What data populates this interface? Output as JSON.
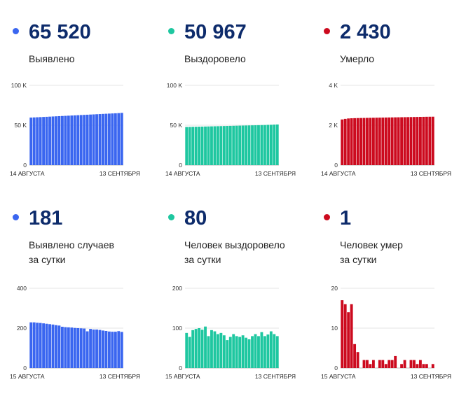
{
  "panels": [
    {
      "number": "65 520",
      "label_lines": [
        "Выявлено"
      ],
      "color": "#3a66f0",
      "chart_data": {
        "type": "bar",
        "ymax": 100000,
        "ticks": [
          {
            "v": 0,
            "t": "0"
          },
          {
            "v": 50000,
            "t": "50 K"
          },
          {
            "v": 100000,
            "t": "100 K"
          }
        ],
        "xlabels": [
          "14 АВГУСТА",
          "13 СЕНТЯБРЯ"
        ],
        "values": [
          59600,
          59800,
          60000,
          60200,
          60400,
          60600,
          60800,
          61000,
          61200,
          61400,
          61600,
          61800,
          62000,
          62200,
          62400,
          62600,
          62800,
          63000,
          63200,
          63400,
          63600,
          63800,
          64000,
          64200,
          64400,
          64600,
          64800,
          65000,
          65200,
          65520
        ]
      }
    },
    {
      "number": "50 967",
      "label_lines": [
        "Выздоровело"
      ],
      "color": "#1ec7a0",
      "chart_data": {
        "type": "bar",
        "ymax": 100000,
        "ticks": [
          {
            "v": 0,
            "t": "0"
          },
          {
            "v": 50000,
            "t": "50 K"
          },
          {
            "v": 100000,
            "t": "100 K"
          }
        ],
        "xlabels": [
          "14 АВГУСТА",
          "13 СЕНТЯБРЯ"
        ],
        "values": [
          47800,
          47900,
          48000,
          48100,
          48200,
          48300,
          48400,
          48500,
          48600,
          48700,
          48800,
          48900,
          49000,
          49100,
          49200,
          49300,
          49400,
          49500,
          49600,
          49700,
          49800,
          49900,
          50000,
          50100,
          50200,
          50300,
          50500,
          50600,
          50800,
          50967
        ]
      }
    },
    {
      "number": "2 430",
      "label_lines": [
        "Умерло"
      ],
      "color": "#cc0a1e",
      "chart_data": {
        "type": "bar",
        "ymax": 4000,
        "ticks": [
          {
            "v": 0,
            "t": "0"
          },
          {
            "v": 2000,
            "t": "2 K"
          },
          {
            "v": 4000,
            "t": "4 K"
          }
        ],
        "xlabels": [
          "14 АВГУСТА",
          "13 СЕНТЯБРЯ"
        ],
        "values": [
          2290,
          2320,
          2340,
          2350,
          2355,
          2360,
          2363,
          2366,
          2369,
          2372,
          2375,
          2378,
          2381,
          2384,
          2387,
          2390,
          2393,
          2396,
          2399,
          2402,
          2405,
          2408,
          2411,
          2414,
          2417,
          2420,
          2423,
          2426,
          2428,
          2430
        ]
      }
    },
    {
      "number": "181",
      "label_lines": [
        "Выявлено случаев",
        "за сутки"
      ],
      "color": "#3a66f0",
      "chart_data": {
        "type": "bar",
        "ymax": 400,
        "ticks": [
          {
            "v": 0,
            "t": "0"
          },
          {
            "v": 200,
            "t": "200"
          },
          {
            "v": 400,
            "t": "400"
          }
        ],
        "xlabels": [
          "15 АВГУСТА",
          "13 СЕНТЯБРЯ"
        ],
        "values": [
          229,
          229,
          227,
          226,
          224,
          222,
          220,
          218,
          215,
          213,
          207,
          205,
          204,
          203,
          201,
          200,
          199,
          198,
          184,
          196,
          193,
          193,
          191,
          188,
          186,
          183,
          182,
          182,
          185,
          181
        ]
      }
    },
    {
      "number": "80",
      "label_lines": [
        "Человек выздоровело",
        "за сутки"
      ],
      "color": "#1ec7a0",
      "chart_data": {
        "type": "bar",
        "ymax": 200,
        "ticks": [
          {
            "v": 0,
            "t": "0"
          },
          {
            "v": 100,
            "t": "100"
          },
          {
            "v": 200,
            "t": "200"
          }
        ],
        "xlabels": [
          "15 АВГУСТА",
          "13 СЕНТЯБРЯ"
        ],
        "values": [
          88,
          78,
          95,
          98,
          100,
          96,
          104,
          80,
          95,
          92,
          85,
          88,
          82,
          70,
          78,
          85,
          80,
          78,
          82,
          76,
          72,
          80,
          85,
          80,
          90,
          80,
          84,
          92,
          85,
          80
        ]
      }
    },
    {
      "number": "1",
      "label_lines": [
        "Человек умер",
        "за сутки"
      ],
      "color": "#cc0a1e",
      "chart_data": {
        "type": "bar",
        "ymax": 20,
        "ticks": [
          {
            "v": 0,
            "t": "0"
          },
          {
            "v": 10,
            "t": "10"
          },
          {
            "v": 20,
            "t": "20"
          }
        ],
        "xlabels": [
          "15 АВГУСТА",
          "13 СЕНТЯБРЯ"
        ],
        "values": [
          17,
          16,
          14,
          16,
          6,
          4,
          0,
          2,
          2,
          1,
          2,
          0,
          2,
          2,
          1,
          2,
          2,
          3,
          0,
          1,
          2,
          0,
          2,
          2,
          1,
          2,
          1,
          1,
          0,
          1
        ]
      }
    }
  ]
}
